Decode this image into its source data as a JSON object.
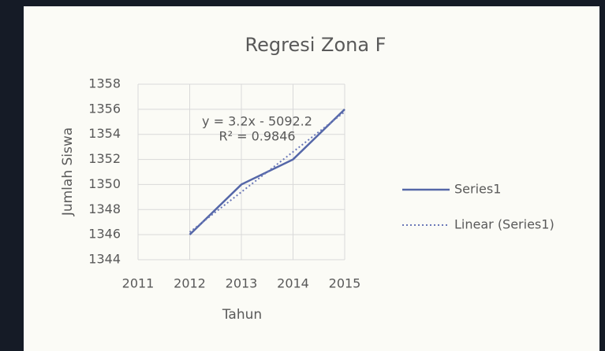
{
  "chart_data": {
    "type": "line",
    "title": "Regresi Zona F",
    "x_label": "Tahun",
    "y_label": "Jumlah Siswa",
    "x": [
      2012,
      2013,
      2014,
      2015
    ],
    "series": [
      {
        "name": "Series1",
        "color": "#5567a8",
        "style": "solid",
        "values": [
          1346,
          1350,
          1352,
          1356
        ]
      },
      {
        "name": "Linear (Series1)",
        "color": "#6a78b8",
        "style": "dotted",
        "values": [
          1346.2,
          1349.4,
          1352.6,
          1355.8
        ]
      }
    ],
    "annotations": [
      "y = 3.2x - 5092.2",
      "R² = 0.9846"
    ],
    "xlim": [
      2011,
      2015
    ],
    "xticks": [
      2011,
      2012,
      2013,
      2014,
      2015
    ],
    "ylim": [
      1344,
      1358
    ],
    "yticks": [
      1344,
      1346,
      1348,
      1350,
      1352,
      1354,
      1356,
      1358
    ],
    "grid": true,
    "legend": "right"
  }
}
